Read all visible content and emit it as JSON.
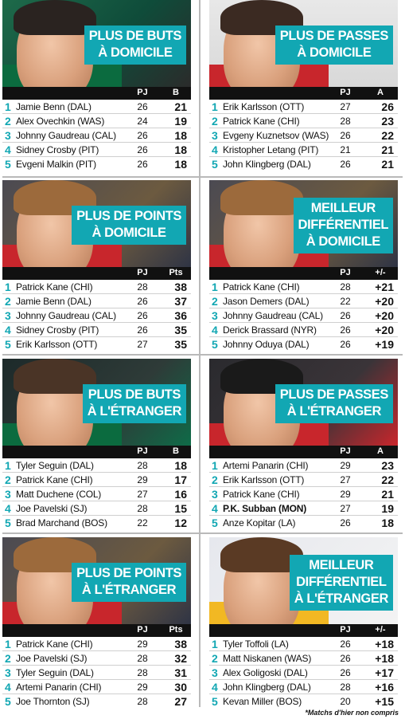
{
  "panels": [
    {
      "id": "p1",
      "title_lines": [
        "Plus de buts",
        "à domicile"
      ],
      "col_gp": "PJ",
      "col_val": "B",
      "rows": [
        {
          "rank": "1",
          "name": "Jamie Benn (DAL)",
          "gp": "26",
          "val": "21"
        },
        {
          "rank": "2",
          "name": "Alex Ovechkin (WAS)",
          "gp": "24",
          "val": "19"
        },
        {
          "rank": "3",
          "name": "Johnny Gaudreau (CAL)",
          "gp": "26",
          "val": "18"
        },
        {
          "rank": "4",
          "name": "Sidney Crosby (PIT)",
          "gp": "26",
          "val": "18"
        },
        {
          "rank": "5",
          "name": "Evgeni Malkin (PIT)",
          "gp": "26",
          "val": "18"
        }
      ]
    },
    {
      "id": "p2",
      "title_lines": [
        "Plus de passes",
        "à domicile"
      ],
      "col_gp": "PJ",
      "col_val": "A",
      "rows": [
        {
          "rank": "1",
          "name": "Erik Karlsson (OTT)",
          "gp": "27",
          "val": "26"
        },
        {
          "rank": "2",
          "name": "Patrick Kane (CHI)",
          "gp": "28",
          "val": "23"
        },
        {
          "rank": "3",
          "name": "Evgeny Kuznetsov (WAS)",
          "gp": "26",
          "val": "22"
        },
        {
          "rank": "4",
          "name": "Kristopher Letang (PIT)",
          "gp": "21",
          "val": "21"
        },
        {
          "rank": "5",
          "name": "John Klingberg (DAL)",
          "gp": "26",
          "val": "21"
        }
      ]
    },
    {
      "id": "p3",
      "title_lines": [
        "Plus de points",
        "à domicile"
      ],
      "col_gp": "PJ",
      "col_val": "Pts",
      "rows": [
        {
          "rank": "1",
          "name": "Patrick Kane (CHI)",
          "gp": "28",
          "val": "38"
        },
        {
          "rank": "2",
          "name": "Jamie Benn (DAL)",
          "gp": "26",
          "val": "37"
        },
        {
          "rank": "3",
          "name": "Johnny Gaudreau (CAL)",
          "gp": "26",
          "val": "36"
        },
        {
          "rank": "4",
          "name": "Sidney Crosby (PIT)",
          "gp": "26",
          "val": "35"
        },
        {
          "rank": "5",
          "name": "Erik Karlsson (OTT)",
          "gp": "27",
          "val": "35"
        }
      ]
    },
    {
      "id": "p4",
      "title_lines": [
        "Meilleur",
        "différentiel",
        "à domicile"
      ],
      "col_gp": "PJ",
      "col_val": "+/-",
      "rows": [
        {
          "rank": "1",
          "name": "Patrick Kane (CHI)",
          "gp": "28",
          "val": "+21"
        },
        {
          "rank": "2",
          "name": "Jason Demers (DAL)",
          "gp": "22",
          "val": "+20"
        },
        {
          "rank": "3",
          "name": "Johnny Gaudreau (CAL)",
          "gp": "26",
          "val": "+20"
        },
        {
          "rank": "4",
          "name": "Derick Brassard (NYR)",
          "gp": "26",
          "val": "+20"
        },
        {
          "rank": "5",
          "name": "Johnny Oduya (DAL)",
          "gp": "26",
          "val": "+19"
        }
      ]
    },
    {
      "id": "p5",
      "title_lines": [
        "Plus de buts",
        "à l'étranger"
      ],
      "col_gp": "PJ",
      "col_val": "B",
      "rows": [
        {
          "rank": "1",
          "name": "Tyler Seguin (DAL)",
          "gp": "28",
          "val": "18"
        },
        {
          "rank": "2",
          "name": "Patrick Kane (CHI)",
          "gp": "29",
          "val": "17"
        },
        {
          "rank": "3",
          "name": "Matt Duchene (COL)",
          "gp": "27",
          "val": "16"
        },
        {
          "rank": "4",
          "name": "Joe Pavelski (SJ)",
          "gp": "28",
          "val": "15"
        },
        {
          "rank": "5",
          "name": "Brad Marchand (BOS)",
          "gp": "22",
          "val": "12"
        }
      ]
    },
    {
      "id": "p6",
      "title_lines": [
        "Plus de passes",
        "à l'étranger"
      ],
      "col_gp": "PJ",
      "col_val": "A",
      "rows": [
        {
          "rank": "1",
          "name": "Artemi Panarin (CHI)",
          "gp": "29",
          "val": "23"
        },
        {
          "rank": "2",
          "name": "Erik Karlsson (OTT)",
          "gp": "27",
          "val": "22"
        },
        {
          "rank": "3",
          "name": "Patrick Kane (CHI)",
          "gp": "29",
          "val": "21"
        },
        {
          "rank": "4",
          "name": "P.K. Subban (MON)",
          "gp": "27",
          "val": "19",
          "bold": true
        },
        {
          "rank": "5",
          "name": "Anze Kopitar (LA)",
          "gp": "26",
          "val": "18"
        }
      ]
    },
    {
      "id": "p7",
      "title_lines": [
        "Plus de points",
        "à l'étranger"
      ],
      "col_gp": "PJ",
      "col_val": "Pts",
      "rows": [
        {
          "rank": "1",
          "name": "Patrick Kane (CHI)",
          "gp": "29",
          "val": "38"
        },
        {
          "rank": "2",
          "name": "Joe Pavelski (SJ)",
          "gp": "28",
          "val": "32"
        },
        {
          "rank": "3",
          "name": "Tyler Seguin (DAL)",
          "gp": "28",
          "val": "31"
        },
        {
          "rank": "4",
          "name": "Artemi Panarin (CHI)",
          "gp": "29",
          "val": "30"
        },
        {
          "rank": "5",
          "name": "Joe Thornton (SJ)",
          "gp": "28",
          "val": "27"
        }
      ]
    },
    {
      "id": "p8",
      "title_lines": [
        "Meilleur",
        "différentiel",
        "à l'étranger"
      ],
      "col_gp": "PJ",
      "col_val": "+/-",
      "rows": [
        {
          "rank": "1",
          "name": "Tyler Toffoli (LA)",
          "gp": "26",
          "val": "+18"
        },
        {
          "rank": "2",
          "name": "Matt Niskanen (WAS)",
          "gp": "26",
          "val": "+18"
        },
        {
          "rank": "3",
          "name": "Alex Goligoski (DAL)",
          "gp": "26",
          "val": "+17"
        },
        {
          "rank": "4",
          "name": "John Klingberg (DAL)",
          "gp": "28",
          "val": "+16"
        },
        {
          "rank": "5",
          "name": "Kevan Miller (BOS)",
          "gp": "20",
          "val": "+15"
        }
      ]
    }
  ],
  "footnote": "*Matchs d'hier non compris"
}
